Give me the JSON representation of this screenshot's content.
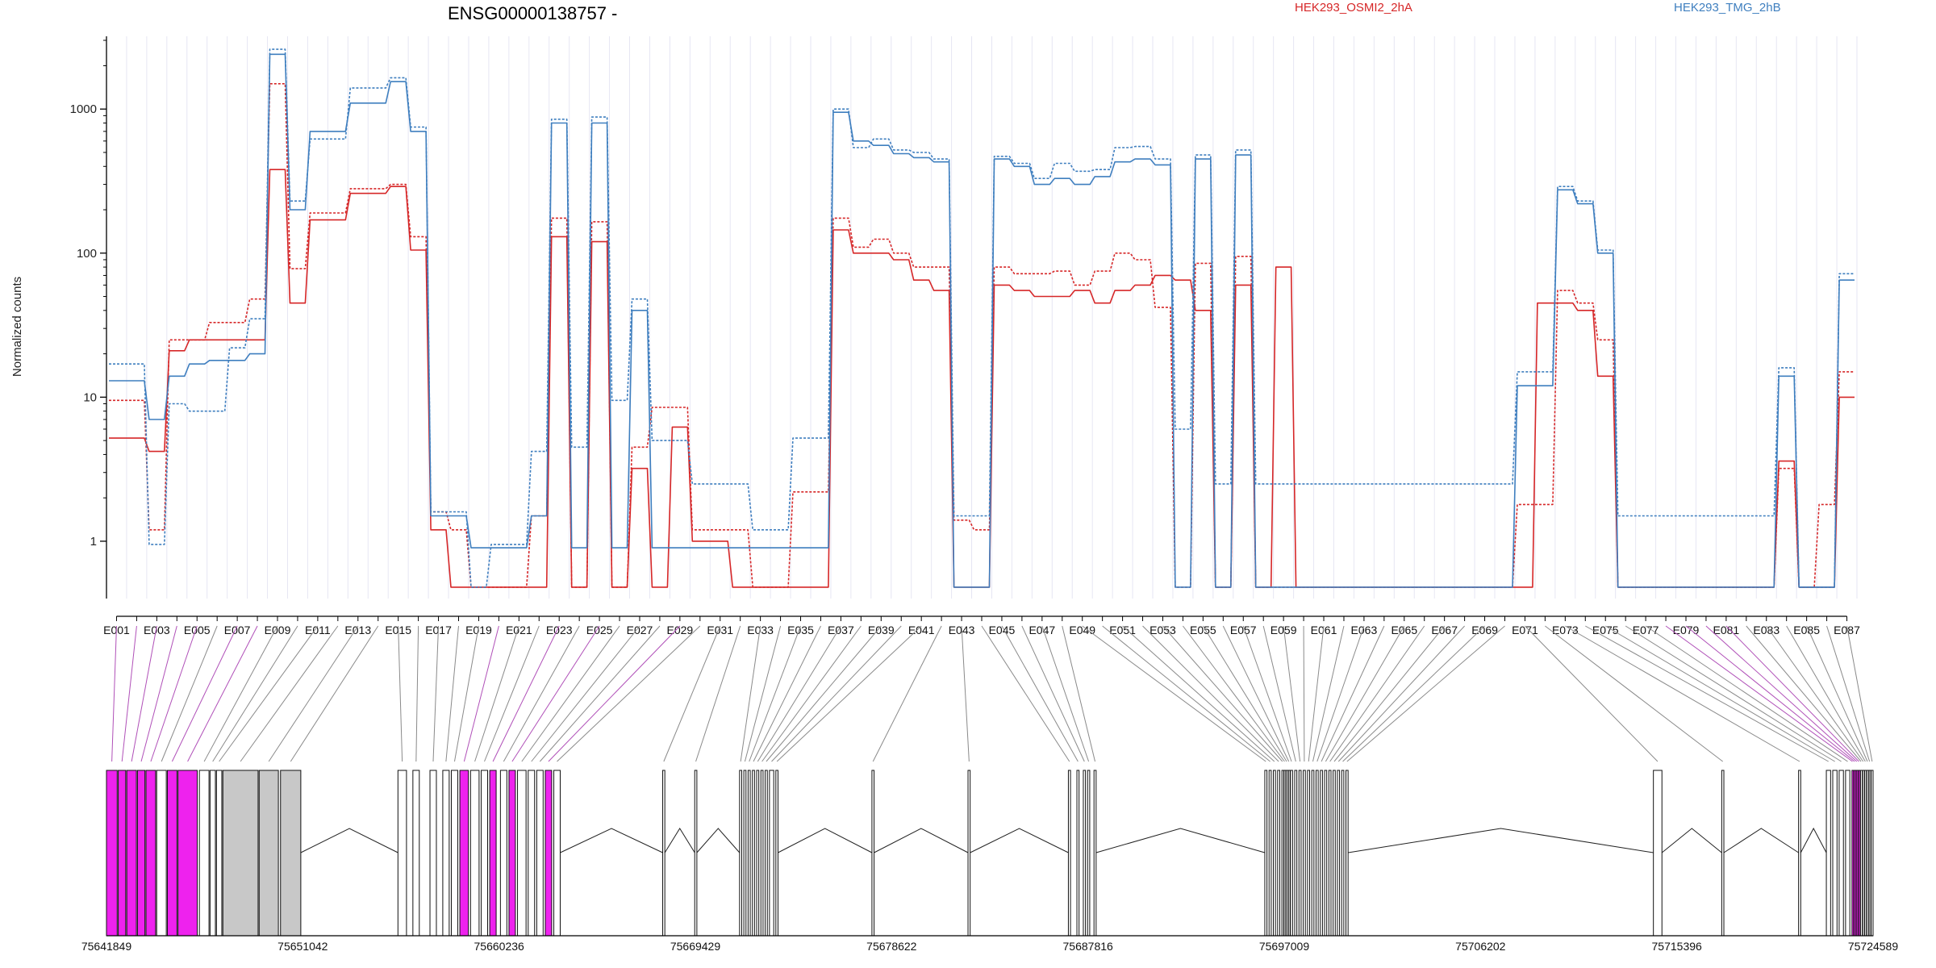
{
  "chart_data": {
    "type": "line",
    "title": "ENSG00000138757 -",
    "xlabel": "",
    "ylabel": "Normalized counts",
    "y_scale": "log",
    "ylim": [
      0.4,
      3200
    ],
    "y_ticks": [
      "1",
      "10",
      "100",
      "1000"
    ],
    "y_tick_values": [
      1,
      10,
      100,
      1000
    ],
    "grid": "vertical exon separators",
    "legend_placement": "top",
    "colors": {
      "osmi": "#d62728",
      "tmg": "#3f7fbf",
      "magenta": "#ee22ee",
      "gray": "#c8c8c8",
      "connector_magenta": "#b050b8",
      "connector_gray": "#8a8a8a"
    },
    "exon_labels": [
      "E001",
      "E003",
      "E005",
      "E007",
      "E009",
      "E011",
      "E013",
      "E015",
      "E017",
      "E019",
      "E021",
      "E023",
      "E025",
      "E027",
      "E029",
      "E031",
      "E033",
      "E035",
      "E037",
      "E039",
      "E041",
      "E043",
      "E045",
      "E047",
      "E049",
      "E051",
      "E053",
      "E055",
      "E057",
      "E059",
      "E061",
      "E063",
      "E065",
      "E067",
      "E069",
      "E071",
      "E073",
      "E075",
      "E077",
      "E079",
      "E081",
      "E083",
      "E085",
      "E087"
    ],
    "genomic_ticks": [
      "75641849",
      "75651042",
      "75660236",
      "75669429",
      "75678622",
      "75687816",
      "75697009",
      "75706202",
      "75715396",
      "75724589"
    ],
    "genomic_range": [
      75641849,
      75724589
    ],
    "exon_ids": [
      "E001",
      "E002",
      "E003",
      "E004",
      "E005",
      "E006",
      "E007",
      "E008",
      "E009",
      "E010",
      "E011",
      "E012",
      "E013",
      "E014",
      "E015",
      "E016",
      "E017",
      "E018",
      "E019",
      "E020",
      "E021",
      "E022",
      "E023",
      "E024",
      "E025",
      "E026",
      "E027",
      "E028",
      "E029",
      "E030",
      "E031",
      "E032",
      "E033",
      "E034",
      "E035",
      "E036",
      "E037",
      "E038",
      "E039",
      "E040",
      "E041",
      "E042",
      "E043",
      "E044",
      "E045",
      "E046",
      "E047",
      "E048",
      "E049",
      "E050",
      "E051",
      "E052",
      "E053",
      "E054",
      "E055",
      "E056",
      "E057",
      "E058",
      "E059",
      "E060",
      "E061",
      "E062",
      "E063",
      "E064",
      "E065",
      "E066",
      "E067",
      "E068",
      "E069",
      "E070",
      "E071",
      "E072",
      "E073",
      "E074",
      "E075",
      "E076",
      "E077",
      "E078",
      "E079",
      "E080",
      "E081",
      "E082",
      "E083",
      "E084",
      "E085",
      "E086",
      "E087"
    ],
    "exon_genomic_start": [
      75641849,
      75642400,
      75642800,
      75643300,
      75643700,
      75644200,
      75644700,
      75645200,
      75646200,
      75646700,
      75647000,
      75647300,
      75649000,
      75650000,
      75655500,
      75656200,
      75657000,
      75657600,
      75658000,
      75658400,
      75658900,
      75659400,
      75659800,
      75660300,
      75660700,
      75661100,
      75661600,
      75662000,
      75662400,
      75662800,
      75667900,
      75669400,
      75671500,
      75671700,
      75671900,
      75672100,
      75672300,
      75672500,
      75672700,
      75672900,
      75673200,
      75677700,
      75682200,
      75686900,
      75687300,
      75687600,
      75687800,
      75688100,
      75696100,
      75696300,
      75696500,
      75696700,
      75696900,
      75697000,
      75697100,
      75697200,
      75697300,
      75697500,
      75697700,
      75697900,
      75698100,
      75698300,
      75698500,
      75698700,
      75698900,
      75699100,
      75699300,
      75699500,
      75699700,
      75699900,
      75714300,
      75717500,
      75721100,
      75722400,
      75722700,
      75723000,
      75723300,
      75723600,
      75723700,
      75723800,
      75723900,
      75724000,
      75724100,
      75724200,
      75724300,
      75724400,
      75724500
    ],
    "exon_genomic_end": [
      75642350,
      75642750,
      75643250,
      75643650,
      75644150,
      75644650,
      75645150,
      75646100,
      75646650,
      75646950,
      75647250,
      75648950,
      75649900,
      75650950,
      75655900,
      75656500,
      75657300,
      75657900,
      75658300,
      75658800,
      75659300,
      75659700,
      75660100,
      75660600,
      75661000,
      75661500,
      75661900,
      75662300,
      75662700,
      75663100,
      75668000,
      75669500,
      75671600,
      75671800,
      75672000,
      75672200,
      75672400,
      75672600,
      75672800,
      75673100,
      75673300,
      75677800,
      75682300,
      75687000,
      75687400,
      75687700,
      75687900,
      75688200,
      75696200,
      75696400,
      75696600,
      75696800,
      75696950,
      75697050,
      75697150,
      75697250,
      75697400,
      75697600,
      75697800,
      75698000,
      75698200,
      75698400,
      75698600,
      75698800,
      75699000,
      75699200,
      75699400,
      75699600,
      75699800,
      75700000,
      75714700,
      75717600,
      75721200,
      75722600,
      75722900,
      75723200,
      75723500,
      75723650,
      75723750,
      75723850,
      75723950,
      75724050,
      75724150,
      75724250,
      75724350,
      75724450,
      75724589
    ],
    "exon_is_magenta": [
      true,
      true,
      true,
      true,
      true,
      false,
      true,
      true,
      false,
      false,
      false,
      false,
      false,
      false,
      false,
      false,
      false,
      false,
      false,
      true,
      false,
      false,
      true,
      false,
      true,
      false,
      false,
      false,
      true,
      false,
      false,
      false,
      false,
      false,
      false,
      false,
      false,
      false,
      false,
      false,
      false,
      false,
      false,
      false,
      false,
      false,
      false,
      false,
      false,
      false,
      false,
      false,
      false,
      false,
      false,
      false,
      false,
      false,
      false,
      false,
      false,
      false,
      false,
      false,
      false,
      false,
      false,
      false,
      false,
      false,
      false,
      false,
      false,
      false,
      false,
      false,
      false,
      true,
      true,
      true,
      true,
      false,
      false,
      false,
      false,
      false,
      false
    ],
    "series": [
      {
        "name": "HEK293_OSMI2_2hA",
        "group": "osmi",
        "dashed": false,
        "values": [
          5.2,
          5.2,
          4.2,
          21,
          25,
          25,
          25,
          25,
          380,
          45,
          170,
          170,
          260,
          260,
          290,
          105,
          1.2,
          0.48,
          0.48,
          0.48,
          0.48,
          0.48,
          130,
          0.48,
          120,
          0.48,
          3.2,
          0.48,
          6.2,
          1.0,
          1.0,
          0.48,
          0.48,
          0.48,
          0.48,
          0.48,
          145,
          100,
          100,
          90,
          65,
          55,
          0.48,
          0.48,
          60,
          55,
          50,
          50,
          55,
          45,
          55,
          60,
          70,
          65,
          40,
          0.48,
          60,
          0.48,
          80,
          0.48,
          0.48,
          0.48,
          0.48,
          0.48,
          0.48,
          0.48,
          0.48,
          0.48,
          0.48,
          0.48,
          0.48,
          45,
          45,
          40,
          14,
          0.48,
          0.48,
          0.48,
          0.48,
          0.48,
          0.48,
          0.48,
          0.48,
          3.6,
          0.48,
          0.48,
          10
        ]
      },
      {
        "name": "HEK293_OSMI2_2hA",
        "group": "osmi",
        "dashed": true,
        "values": [
          9.5,
          9.5,
          1.2,
          25,
          25,
          33,
          33,
          48,
          1500,
          78,
          190,
          190,
          280,
          280,
          300,
          130,
          1.6,
          1.2,
          0.48,
          0.48,
          0.48,
          1.5,
          175,
          0.48,
          165,
          0.48,
          4.5,
          8.5,
          8.5,
          1.2,
          1.2,
          1.2,
          0.48,
          0.48,
          2.2,
          2.2,
          175,
          110,
          125,
          100,
          80,
          80,
          1.4,
          1.2,
          80,
          72,
          72,
          75,
          60,
          75,
          100,
          90,
          42,
          0.48,
          85,
          0.48,
          95,
          0.48,
          0.48,
          0.48,
          0.48,
          0.48,
          0.48,
          0.48,
          0.48,
          0.48,
          0.48,
          0.48,
          0.48,
          0.48,
          1.8,
          1.8,
          55,
          45,
          25,
          0.48,
          0.48,
          0.48,
          0.48,
          0.48,
          0.48,
          0.48,
          0.48,
          3.2,
          0.48,
          1.8,
          15
        ]
      },
      {
        "name": "HEK293_TMG_2hB",
        "group": "tmg",
        "dashed": false,
        "values": [
          13,
          13,
          7,
          14,
          17,
          18,
          18,
          20,
          2400,
          200,
          700,
          700,
          1100,
          1100,
          1550,
          700,
          1.5,
          1.5,
          0.9,
          0.9,
          0.9,
          1.5,
          800,
          0.9,
          800,
          0.9,
          40,
          0.9,
          0.9,
          0.9,
          0.9,
          0.9,
          0.9,
          0.9,
          0.9,
          0.9,
          950,
          600,
          560,
          490,
          460,
          430,
          0.48,
          0.48,
          450,
          400,
          300,
          330,
          300,
          340,
          430,
          450,
          410,
          0.48,
          450,
          0.48,
          480,
          0.48,
          0.48,
          0.48,
          0.48,
          0.48,
          0.48,
          0.48,
          0.48,
          0.48,
          0.48,
          0.48,
          0.48,
          0.48,
          12,
          12,
          275,
          220,
          100,
          0.48,
          0.48,
          0.48,
          0.48,
          0.48,
          0.48,
          0.48,
          0.48,
          14,
          0.48,
          0.48,
          65
        ]
      },
      {
        "name": "HEK293_TMG_2hB",
        "group": "tmg",
        "dashed": true,
        "values": [
          17,
          17,
          0.95,
          9,
          8,
          8,
          22,
          35,
          2600,
          230,
          620,
          620,
          1400,
          1400,
          1650,
          750,
          1.6,
          1.6,
          0.48,
          0.95,
          0.95,
          4.2,
          850,
          4.5,
          880,
          9.5,
          48,
          5,
          5,
          2.5,
          2.5,
          2.5,
          1.2,
          1.2,
          5.2,
          5.2,
          1000,
          540,
          620,
          520,
          500,
          450,
          1.5,
          1.5,
          470,
          420,
          330,
          420,
          370,
          380,
          540,
          550,
          450,
          6,
          480,
          2.5,
          520,
          2.5,
          2.5,
          2.5,
          2.5,
          2.5,
          2.5,
          2.5,
          2.5,
          2.5,
          2.5,
          2.5,
          2.5,
          2.5,
          15,
          15,
          290,
          230,
          105,
          1.5,
          1.5,
          1.5,
          1.5,
          1.5,
          1.5,
          1.5,
          1.5,
          16,
          0.48,
          0.48,
          72
        ]
      }
    ]
  }
}
